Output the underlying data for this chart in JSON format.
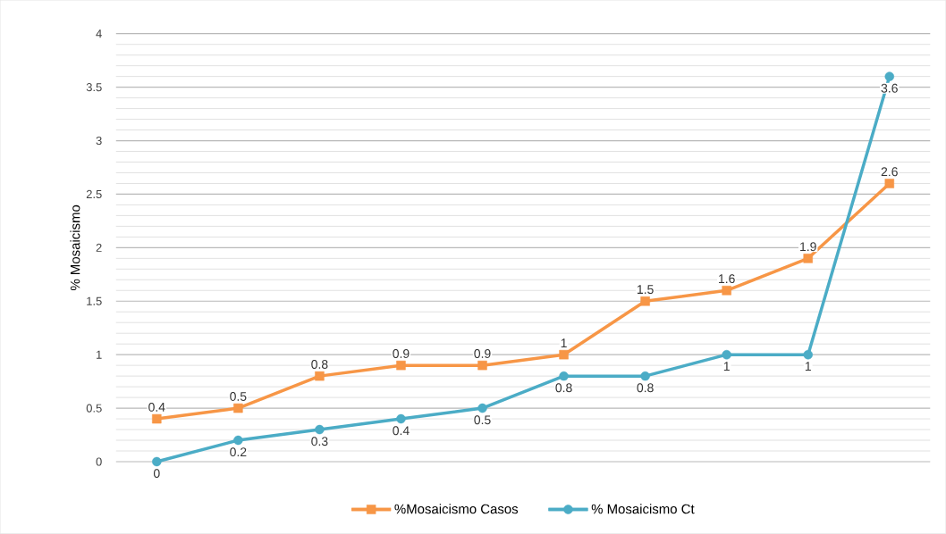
{
  "chart_data": {
    "type": "line",
    "ylabel": "% Mosaicismo",
    "categories": [
      null,
      null,
      null,
      null,
      null,
      null,
      null,
      null,
      null,
      null
    ],
    "series": [
      {
        "name": "%Mosaicismo Casos",
        "color": "#f79646",
        "marker": "square",
        "values": [
          0.4,
          0.5,
          0.8,
          0.9,
          0.9,
          1,
          1.5,
          1.6,
          1.9,
          2.6
        ]
      },
      {
        "name": "% Mosaicismo Ct",
        "color": "#4bacc6",
        "marker": "circle",
        "values": [
          0,
          0.2,
          0.3,
          0.4,
          0.5,
          0.8,
          0.8,
          1,
          1,
          3.6
        ]
      }
    ],
    "ylim": [
      0,
      4
    ],
    "yticks": [
      0,
      0.5,
      1,
      1.5,
      2,
      2.5,
      3,
      3.5,
      4
    ],
    "grid": "y",
    "legend": "bottom",
    "data_labels": true,
    "line_style": "solid"
  }
}
